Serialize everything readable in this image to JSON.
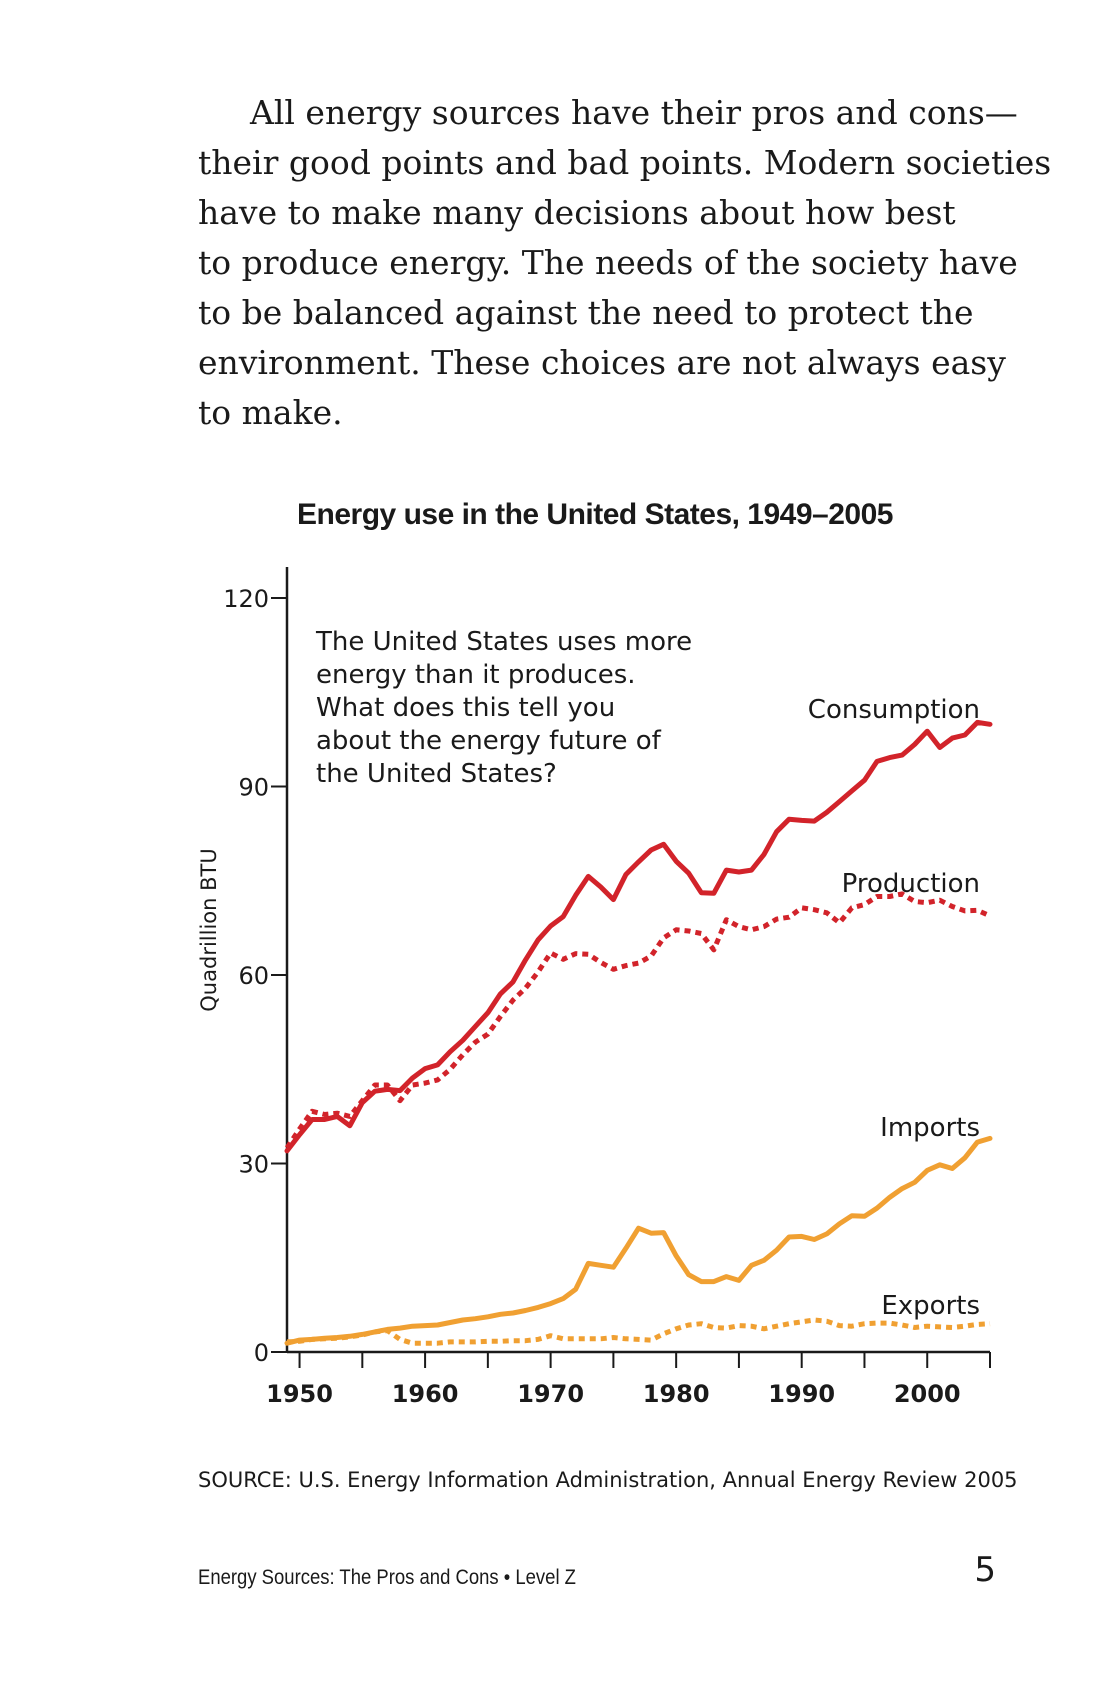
{
  "body_text": {
    "lines": [
      "All energy sources have their pros and cons—",
      "their good points and bad points. Modern societies",
      "have to make many decisions about how best",
      "to produce energy. The needs of the society have",
      "to be balanced against the need to protect the",
      "environment. These choices are not always easy",
      "to make."
    ]
  },
  "chart_data": {
    "type": "line",
    "title": "Energy use in the United States, 1949–2005",
    "ylabel": "Quadrillion BTU",
    "xlabel": "",
    "xlim": [
      1949,
      2005
    ],
    "ylim": [
      0,
      120
    ],
    "x_ticks": [
      1950,
      1960,
      1970,
      1980,
      1990,
      2000
    ],
    "y_ticks": [
      0,
      30,
      60,
      90,
      120
    ],
    "annotation": "The United States uses more energy than it produces. What does this tell you about the energy future of the United States?",
    "annotation_lines": [
      "The United States uses more",
      "energy than it produces.",
      "What does this tell you",
      "about the energy future of",
      "the United States?"
    ],
    "series": [
      {
        "name": "Consumption",
        "style": "solid",
        "color": "#d2232a",
        "x": [
          1949,
          1950,
          1951,
          1952,
          1953,
          1954,
          1955,
          1956,
          1957,
          1958,
          1959,
          1960,
          1961,
          1962,
          1963,
          1964,
          1965,
          1966,
          1967,
          1968,
          1969,
          1970,
          1971,
          1972,
          1973,
          1974,
          1975,
          1976,
          1977,
          1978,
          1979,
          1980,
          1981,
          1982,
          1983,
          1984,
          1985,
          1986,
          1987,
          1988,
          1989,
          1990,
          1991,
          1992,
          1993,
          1994,
          1995,
          1996,
          1997,
          1998,
          1999,
          2000,
          2001,
          2002,
          2003,
          2004,
          2005
        ],
        "values": [
          32,
          34.6,
          37,
          37,
          37.5,
          36,
          39.7,
          41.5,
          41.8,
          41.6,
          43.6,
          45.1,
          45.7,
          47.8,
          49.6,
          51.8,
          54,
          57,
          58.9,
          62.4,
          65.6,
          67.8,
          69.3,
          72.7,
          75.7,
          74,
          72,
          76,
          78,
          79.9,
          80.8,
          78.1,
          76.2,
          73.1,
          73,
          76.7,
          76.4,
          76.7,
          79.2,
          82.8,
          84.8,
          84.6,
          84.5,
          85.9,
          87.6,
          89.3,
          91,
          94,
          94.6,
          95,
          96.7,
          98.8,
          96.2,
          97.7,
          98.2,
          100.2,
          99.9
        ]
      },
      {
        "name": "Production",
        "style": "dotted",
        "color": "#d2232a",
        "x": [
          1949,
          1950,
          1951,
          1952,
          1953,
          1954,
          1955,
          1956,
          1957,
          1958,
          1959,
          1960,
          1961,
          1962,
          1963,
          1964,
          1965,
          1966,
          1967,
          1968,
          1969,
          1970,
          1971,
          1972,
          1973,
          1974,
          1975,
          1976,
          1977,
          1978,
          1979,
          1980,
          1981,
          1982,
          1983,
          1984,
          1985,
          1986,
          1987,
          1988,
          1989,
          1990,
          1991,
          1992,
          1993,
          1994,
          1995,
          1996,
          1997,
          1998,
          1999,
          2000,
          2001,
          2002,
          2003,
          2004,
          2005
        ],
        "values": [
          32.5,
          35.5,
          38.3,
          37.8,
          38,
          37.5,
          40,
          42.5,
          42.5,
          40,
          42.5,
          42.8,
          43.3,
          45,
          47.3,
          49.3,
          50.6,
          53.4,
          56,
          57.9,
          60.5,
          63.5,
          62.5,
          63.4,
          63.3,
          62,
          60.9,
          61.5,
          61.9,
          63,
          65.9,
          67.2,
          67,
          66.6,
          64,
          68.8,
          67.7,
          67.2,
          67.7,
          68.9,
          69.2,
          70.7,
          70.4,
          69.9,
          68.3,
          70.7,
          71.2,
          72.5,
          72.5,
          72.9,
          71.7,
          71.5,
          71.9,
          70.9,
          70.2,
          70.3,
          69.4
        ]
      },
      {
        "name": "Imports",
        "style": "solid",
        "color": "#f0a032",
        "x": [
          1949,
          1950,
          1951,
          1952,
          1953,
          1954,
          1955,
          1956,
          1957,
          1958,
          1959,
          1960,
          1961,
          1962,
          1963,
          1964,
          1965,
          1966,
          1967,
          1968,
          1969,
          1970,
          1971,
          1972,
          1973,
          1974,
          1975,
          1976,
          1977,
          1978,
          1979,
          1980,
          1981,
          1982,
          1983,
          1984,
          1985,
          1986,
          1987,
          1988,
          1989,
          1990,
          1991,
          1992,
          1993,
          1994,
          1995,
          1996,
          1997,
          1998,
          1999,
          2000,
          2001,
          2002,
          2003,
          2004,
          2005
        ],
        "values": [
          1.4,
          1.9,
          2,
          2.2,
          2.3,
          2.5,
          2.8,
          3.2,
          3.6,
          3.8,
          4.1,
          4.2,
          4.3,
          4.7,
          5.1,
          5.3,
          5.6,
          6,
          6.2,
          6.6,
          7.1,
          7.7,
          8.5,
          10,
          14.1,
          13.8,
          13.5,
          16.5,
          19.7,
          18.9,
          19,
          15.3,
          12.3,
          11.2,
          11.2,
          12,
          11.4,
          13.8,
          14.6,
          16.2,
          18.3,
          18.4,
          17.9,
          18.8,
          20.4,
          21.7,
          21.6,
          22.9,
          24.6,
          26,
          27,
          28.9,
          29.8,
          29.2,
          30.9,
          33.4,
          34
        ]
      },
      {
        "name": "Exports",
        "style": "dotted",
        "color": "#f0a032",
        "x": [
          1949,
          1950,
          1951,
          1952,
          1953,
          1954,
          1955,
          1956,
          1957,
          1958,
          1959,
          1960,
          1961,
          1962,
          1963,
          1964,
          1965,
          1966,
          1967,
          1968,
          1969,
          1970,
          1971,
          1972,
          1973,
          1974,
          1975,
          1976,
          1977,
          1978,
          1979,
          1980,
          1981,
          1982,
          1983,
          1984,
          1985,
          1986,
          1987,
          1988,
          1989,
          1990,
          1991,
          1992,
          1993,
          1994,
          1995,
          1996,
          1997,
          1998,
          1999,
          2000,
          2001,
          2002,
          2003,
          2004,
          2005
        ],
        "values": [
          1.6,
          1.7,
          2,
          2.1,
          2.2,
          2.4,
          2.7,
          3.2,
          3.4,
          2,
          1.4,
          1.4,
          1.4,
          1.6,
          1.6,
          1.6,
          1.7,
          1.7,
          1.8,
          1.8,
          2,
          2.6,
          2.1,
          2.1,
          2.1,
          2.1,
          2.3,
          2.1,
          2,
          1.9,
          2.9,
          3.7,
          4.3,
          4.5,
          3.9,
          3.8,
          4.2,
          4.1,
          3.7,
          4.1,
          4.5,
          4.8,
          5.1,
          4.9,
          4.2,
          4.1,
          4.5,
          4.6,
          4.6,
          4.3,
          3.9,
          4.1,
          4,
          3.9,
          4.1,
          4.4,
          4.5
        ]
      }
    ],
    "series_label_color": "#1a1a1a",
    "axis_color": "#1a1a1a"
  },
  "source": "SOURCE: U.S. Energy Information Administration, Annual Energy Review 2005",
  "footer": {
    "book_title": "Energy Sources: The Pros and Cons • Level Z",
    "page_number": "5"
  }
}
